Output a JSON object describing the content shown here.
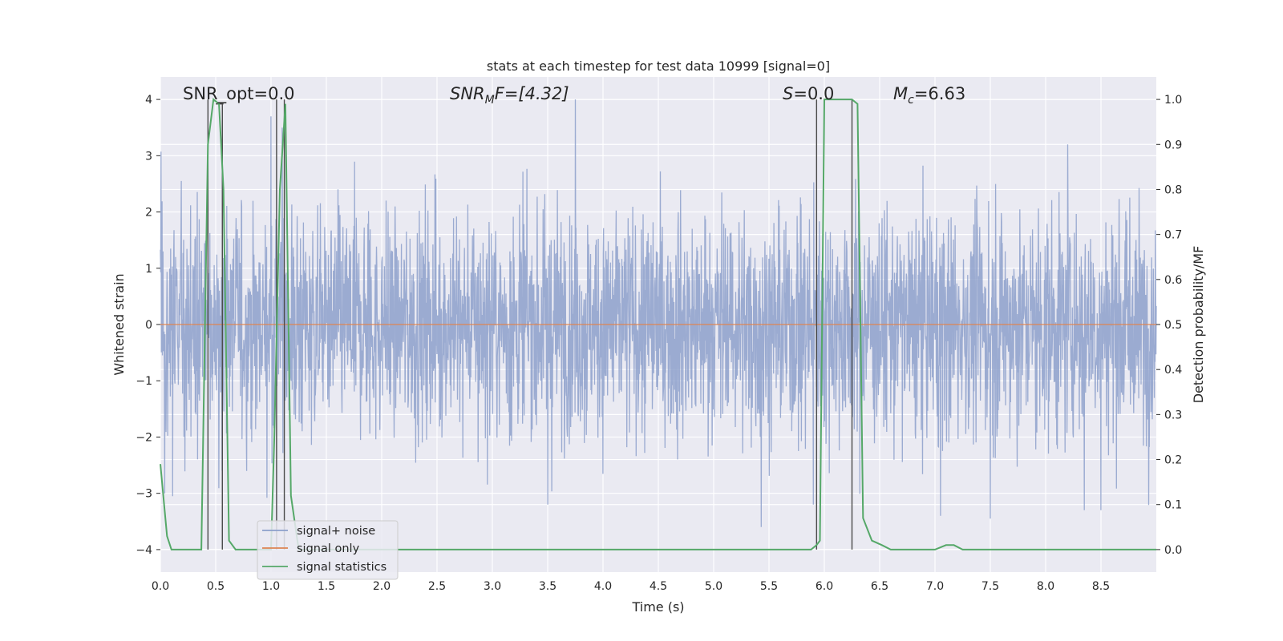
{
  "chart_data": {
    "type": "line",
    "title": "stats at each timestep for test data 10999 [signal=0]",
    "xlabel": "Time (s)",
    "ylabel": "Whitened strain",
    "y2label": "Detection probability/MF",
    "xlim": [
      0.0,
      9.0
    ],
    "ylim": [
      -4.4,
      4.4
    ],
    "y2lim": [
      -0.05,
      1.05
    ],
    "xticks": [
      "0.0",
      "0.5",
      "1.0",
      "1.5",
      "2.0",
      "2.5",
      "3.0",
      "3.5",
      "4.0",
      "4.5",
      "5.0",
      "5.5",
      "6.0",
      "6.5",
      "7.0",
      "7.5",
      "8.0",
      "8.5"
    ],
    "yticks": [
      "−4",
      "−3",
      "−2",
      "−1",
      "0",
      "1",
      "2",
      "3",
      "4"
    ],
    "y2ticks": [
      "0.0",
      "0.1",
      "0.2",
      "0.3",
      "0.4",
      "0.5",
      "0.6",
      "0.7",
      "0.8",
      "0.9",
      "1.0"
    ],
    "grid": true,
    "legend_position": "lower-left",
    "annotations": {
      "snr_opt": "SNR_opt=0.0",
      "snr_mf_base": "SNR",
      "snr_mf_sub": "M",
      "snr_mf_rest": "F=[4.32]",
      "s_sym": "S",
      "s_rest": "=0.0",
      "mc_base": "M",
      "mc_sub": "c",
      "mc_rest": "=6.63"
    },
    "series": [
      {
        "name": "signal+ noise",
        "color": "#8da0cb",
        "kind": "noisy strain",
        "approx_range": [
          -3.6,
          4.0
        ],
        "spikes": [
          [
            0.04,
            -3.0
          ],
          [
            0.11,
            -3.05
          ],
          [
            1.0,
            3.7
          ],
          [
            1.1,
            3.5
          ],
          [
            3.5,
            -3.2
          ],
          [
            3.75,
            4.0
          ],
          [
            5.43,
            -3.6
          ],
          [
            5.9,
            -3.2
          ],
          [
            7.05,
            -3.4
          ],
          [
            7.5,
            -3.45
          ],
          [
            8.2,
            3.2
          ],
          [
            8.35,
            -3.3
          ],
          [
            8.5,
            -3.3
          ]
        ]
      },
      {
        "name": "signal only",
        "color": "#dd8452",
        "x": [
          0.0,
          9.0
        ],
        "y": [
          0.0,
          0.0
        ]
      },
      {
        "name": "signal statistics",
        "color": "#55a868",
        "axis": "right",
        "x": [
          0.0,
          0.06,
          0.1,
          0.2,
          0.3,
          0.37,
          0.43,
          0.48,
          0.53,
          0.57,
          0.62,
          0.68,
          0.75,
          1.0,
          1.03,
          1.08,
          1.13,
          1.18,
          1.25,
          1.3,
          1.5,
          2.0,
          3.0,
          4.0,
          5.0,
          5.5,
          5.88,
          5.93,
          5.96,
          6.0,
          6.1,
          6.2,
          6.25,
          6.3,
          6.35,
          6.43,
          6.52,
          6.6,
          6.7,
          7.0,
          7.1,
          7.17,
          7.25,
          8.0,
          9.0
        ],
        "y": [
          0.19,
          0.03,
          0.0,
          0.0,
          0.0,
          0.0,
          0.9,
          1.0,
          0.99,
          0.8,
          0.02,
          0.0,
          0.0,
          0.0,
          0.25,
          0.8,
          0.99,
          0.12,
          0.0,
          0.0,
          0.0,
          0.0,
          0.0,
          0.0,
          0.0,
          0.0,
          0.0,
          0.01,
          0.02,
          1.0,
          1.0,
          1.0,
          1.0,
          0.99,
          0.07,
          0.02,
          0.01,
          0.0,
          0.0,
          0.0,
          0.01,
          0.01,
          0.0,
          0.0,
          0.0
        ]
      }
    ],
    "markers": [
      {
        "x": 0.43,
        "y": [
          0.0,
          1.0
        ]
      },
      {
        "x": 0.56,
        "y": [
          0.0,
          0.99
        ]
      },
      {
        "x": 1.05,
        "y": [
          0.0,
          1.0
        ]
      },
      {
        "x": 1.12,
        "y": [
          0.0,
          1.0
        ]
      },
      {
        "x": 5.93,
        "y": [
          0.0,
          1.0
        ]
      },
      {
        "x": 6.25,
        "y": [
          0.0,
          1.0
        ]
      }
    ],
    "colors": {
      "axes_bg": "#eaeaf2",
      "grid": "#ffffff",
      "marker": "#4a4a4a"
    }
  }
}
